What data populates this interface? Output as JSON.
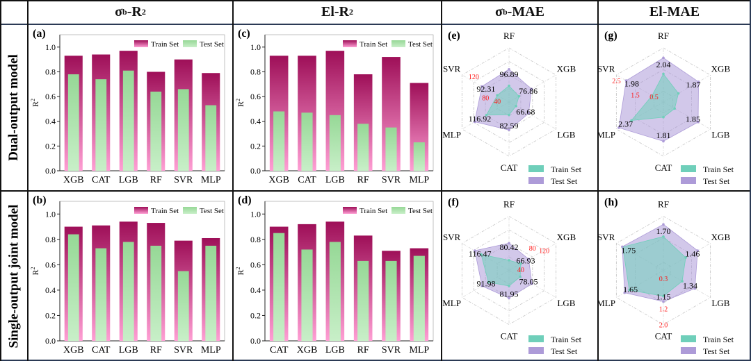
{
  "columns": [
    {
      "main": "σ",
      "sub": "b",
      "rest": "-R",
      "sup": "2"
    },
    {
      "main": "El",
      "sub": "",
      "rest": "-R",
      "sup": "2"
    },
    {
      "main": "σ",
      "sub": "b",
      "rest": "-MAE",
      "sup": ""
    },
    {
      "main": "El",
      "sub": "",
      "rest": "-MAE",
      "sup": ""
    }
  ],
  "rows": [
    "Dual-output model",
    "Single-output joint model"
  ],
  "colors": {
    "train_top": "#9e0f58",
    "train_bottom": "#ff9fd4",
    "test_top": "#96d896",
    "test_bottom": "#c8efc8",
    "radar_train": "#6fcfba",
    "radar_test": "#ad9bd8",
    "ring_label": "#ff1a1a"
  },
  "chart_data": [
    {
      "id": "a",
      "type": "bar",
      "panel_label": "(a)",
      "ylabel": "R2",
      "ylim": [
        0,
        1.1
      ],
      "yticks": [
        "0.0",
        "0.2",
        "0.4",
        "0.6",
        "0.8",
        "1.0"
      ],
      "categories": [
        "XGB",
        "CAT",
        "LGB",
        "RF",
        "SVR",
        "MLP"
      ],
      "legend": [
        "Train Set",
        "Test Set"
      ],
      "legend_position": "top-right",
      "series": [
        {
          "name": "Train Set",
          "values": [
            0.93,
            0.94,
            0.97,
            0.8,
            0.9,
            0.79
          ]
        },
        {
          "name": "Test Set",
          "values": [
            0.78,
            0.74,
            0.81,
            0.64,
            0.66,
            0.53
          ]
        }
      ]
    },
    {
      "id": "c",
      "type": "bar",
      "panel_label": "(c)",
      "ylabel": "R2",
      "ylim": [
        0,
        1.1
      ],
      "yticks": [
        "0.0",
        "0.2",
        "0.4",
        "0.6",
        "0.8",
        "1.0"
      ],
      "categories": [
        "XGB",
        "CAT",
        "LGB",
        "RF",
        "SVR",
        "MLP"
      ],
      "legend": [
        "Train Set",
        "Test Set"
      ],
      "legend_position": "top-right",
      "series": [
        {
          "name": "Train Set",
          "values": [
            0.93,
            0.93,
            0.97,
            0.78,
            0.92,
            0.71
          ]
        },
        {
          "name": "Test Set",
          "values": [
            0.48,
            0.47,
            0.45,
            0.38,
            0.35,
            0.23
          ]
        }
      ]
    },
    {
      "id": "e",
      "type": "radar",
      "panel_label": "(e)",
      "axes": [
        "RF",
        "XGB",
        "LGB",
        "CAT",
        "MLP",
        "SVR"
      ],
      "max": 160,
      "rings": [
        40,
        80,
        120,
        160
      ],
      "ring_labels": [
        "40",
        "80",
        "120"
      ],
      "ring_axis": 5,
      "legend": [
        "Train Set",
        "Test Set"
      ],
      "legend_position": "bottom-right",
      "series": [
        {
          "name": "Train Set",
          "values": [
            48,
            34,
            24,
            38,
            77,
            40
          ]
        },
        {
          "name": "Test Set",
          "values": [
            96.89,
            76.86,
            66.68,
            82.59,
            116.92,
            92.31
          ]
        }
      ],
      "value_labels": [
        "96.89",
        "76.86",
        "66.68",
        "82.59",
        "116.92",
        "92.31"
      ]
    },
    {
      "id": "g",
      "type": "radar",
      "panel_label": "(g)",
      "axes": [
        "RF",
        "XGB",
        "LGB",
        "CAT",
        "MLP",
        "SVR"
      ],
      "max": 2.5,
      "rings": [
        0.5,
        1.5,
        2.5
      ],
      "ring_labels": [
        "0.5",
        "1.5",
        "2.5"
      ],
      "ring_axis": 5,
      "legend": [
        "Train Set",
        "Test Set"
      ],
      "legend_position": "bottom-right",
      "series": [
        {
          "name": "Train Set",
          "values": [
            1.3,
            0.8,
            0.6,
            0.7,
            1.7,
            0.6
          ]
        },
        {
          "name": "Test Set",
          "values": [
            2.04,
            1.87,
            1.85,
            1.81,
            2.37,
            1.98
          ]
        }
      ],
      "value_labels": [
        "2.04",
        "1.87",
        "1.85",
        "1.81",
        "2.37",
        "1.98"
      ]
    },
    {
      "id": "b",
      "type": "bar",
      "panel_label": "(b)",
      "ylabel": "R2",
      "ylim": [
        0,
        1.1
      ],
      "yticks": [
        "0.0",
        "0.2",
        "0.4",
        "0.6",
        "0.8",
        "1.0"
      ],
      "categories": [
        "XGB",
        "CAT",
        "LGB",
        "RF",
        "SVR",
        "MLP"
      ],
      "legend": [
        "Train Set",
        "Test Set"
      ],
      "legend_position": "top-right",
      "series": [
        {
          "name": "Train Set",
          "values": [
            0.9,
            0.91,
            0.94,
            0.93,
            0.79,
            0.81
          ]
        },
        {
          "name": "Test Set",
          "values": [
            0.84,
            0.73,
            0.78,
            0.75,
            0.55,
            0.75
          ]
        }
      ]
    },
    {
      "id": "d",
      "type": "bar",
      "panel_label": "(d)",
      "ylabel": "R2",
      "ylim": [
        0,
        1.1
      ],
      "yticks": [
        "0.0",
        "0.2",
        "0.4",
        "0.6",
        "0.8",
        "1.0"
      ],
      "categories": [
        "CAT",
        "XGB",
        "LGB",
        "RF",
        "SVR",
        "MLP"
      ],
      "legend": [
        "Train Set",
        "Test Set"
      ],
      "legend_position": "top-right",
      "series": [
        {
          "name": "Train Set",
          "values": [
            0.9,
            0.92,
            0.94,
            0.83,
            0.71,
            0.73
          ]
        },
        {
          "name": "Test Set",
          "values": [
            0.85,
            0.72,
            0.78,
            0.63,
            0.63,
            0.67
          ]
        }
      ]
    },
    {
      "id": "f",
      "type": "radar",
      "panel_label": "(f)",
      "axes": [
        "RF",
        "XGB",
        "LGB",
        "CAT",
        "MLP",
        "SVR"
      ],
      "max": 160,
      "rings": [
        40,
        80,
        120,
        160
      ],
      "ring_labels": [
        "40",
        "80",
        "120"
      ],
      "ring_axis": 1,
      "legend": [
        "Train Set",
        "Test Set"
      ],
      "legend_position": "bottom-right",
      "series": [
        {
          "name": "Train Set",
          "values": [
            30,
            40,
            38,
            46,
            70,
            95
          ]
        },
        {
          "name": "Test Set",
          "values": [
            80.42,
            66.93,
            78.05,
            81.95,
            91.98,
            116.47
          ]
        }
      ],
      "value_labels": [
        "80.42",
        "66.93",
        "78.05",
        "81.95",
        "91.98",
        "116.47"
      ]
    },
    {
      "id": "h",
      "type": "radar",
      "panel_label": "(h)",
      "axes": [
        "RF",
        "XGB",
        "LGB",
        "CAT",
        "MLP",
        "SVR"
      ],
      "max": 2.0,
      "rings": [
        0.3,
        1.2,
        2.0
      ],
      "ring_labels": [
        "0.3",
        "1.2",
        "2.0"
      ],
      "ring_axis": 3,
      "legend": [
        "Train Set",
        "Test Set"
      ],
      "legend_position": "bottom-right",
      "series": [
        {
          "name": "Train Set",
          "values": [
            1.25,
            0.95,
            0.8,
            0.95,
            1.45,
            1.73
          ]
        },
        {
          "name": "Test Set",
          "values": [
            1.7,
            1.46,
            1.34,
            1.15,
            1.65,
            1.75
          ]
        }
      ],
      "value_labels": [
        "1.70",
        "1.46",
        "1.34",
        "1.15",
        "1.65",
        "1.75"
      ]
    }
  ]
}
